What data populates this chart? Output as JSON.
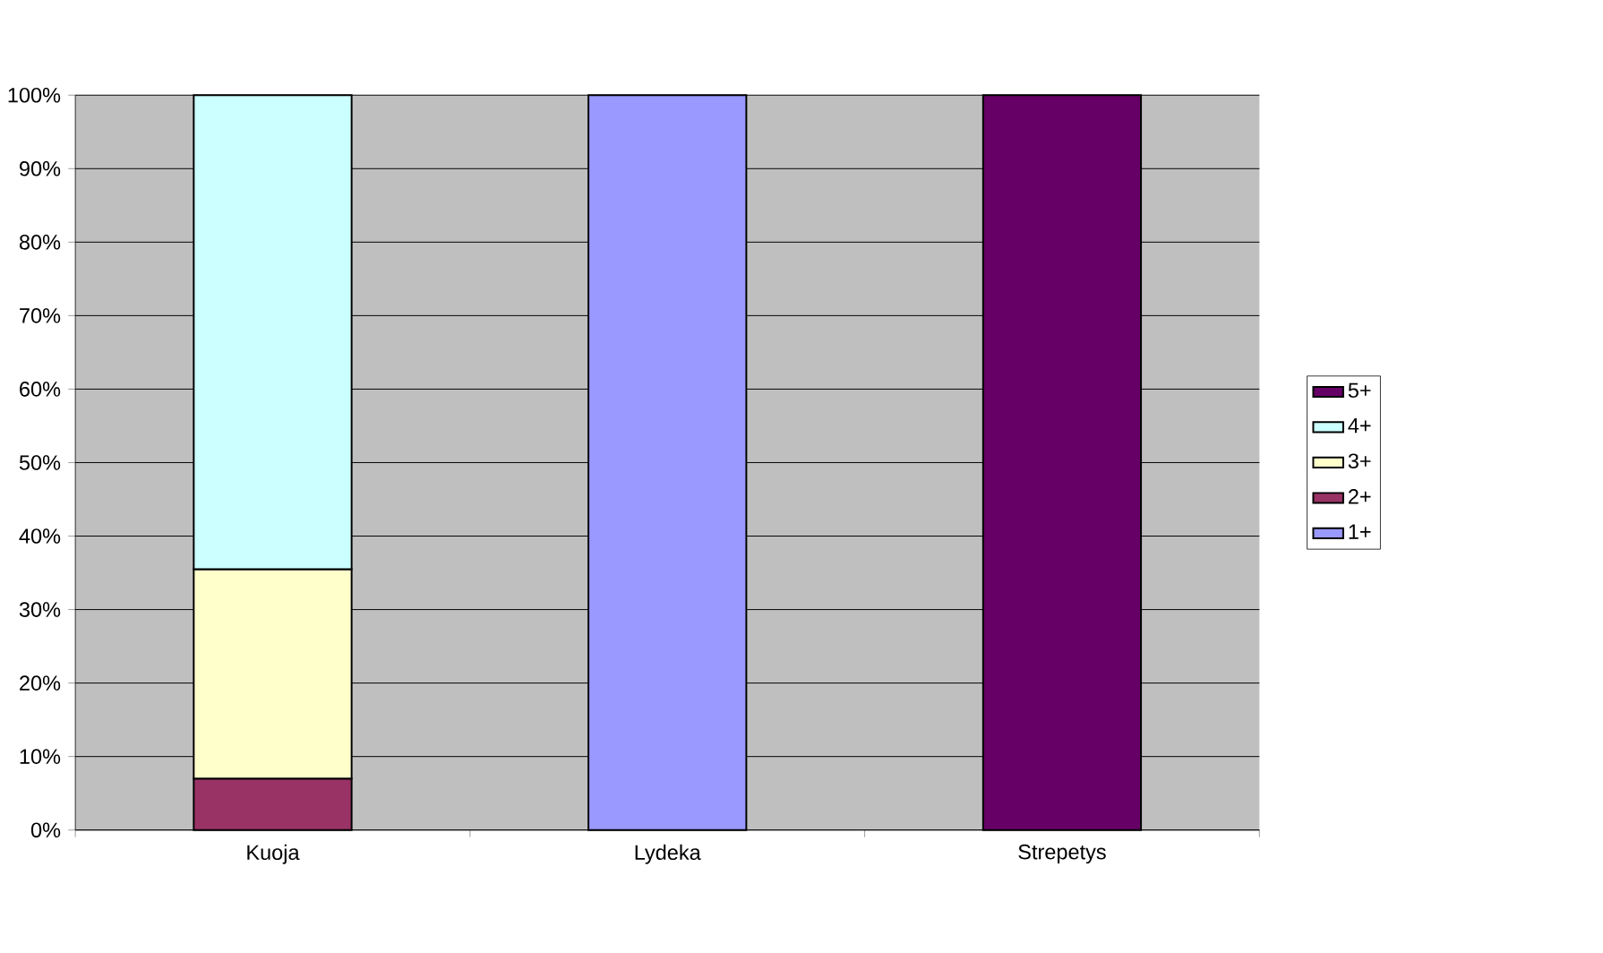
{
  "chart_data": {
    "type": "bar",
    "stacked": true,
    "categories": [
      "Kuoja",
      "Lydeka",
      "Strepetys"
    ],
    "series": [
      {
        "name": "1+",
        "color": "#9999ff",
        "values": [
          null,
          100,
          null
        ]
      },
      {
        "name": "2+",
        "color": "#993366",
        "values": [
          7,
          null,
          null
        ]
      },
      {
        "name": "3+",
        "color": "#ffffcc",
        "values": [
          28.5,
          null,
          null
        ]
      },
      {
        "name": "4+",
        "color": "#ccffff",
        "values": [
          64.5,
          null,
          null
        ]
      },
      {
        "name": "5+",
        "color": "#660066",
        "values": [
          null,
          null,
          100
        ]
      }
    ],
    "ylim": [
      0,
      100
    ],
    "yticks": [
      {
        "value": 0,
        "label": "0%"
      },
      {
        "value": 10,
        "label": "10%"
      },
      {
        "value": 20,
        "label": "20%"
      },
      {
        "value": 30,
        "label": "30%"
      },
      {
        "value": 40,
        "label": "40%"
      },
      {
        "value": 50,
        "label": "50%"
      },
      {
        "value": 60,
        "label": "60%"
      },
      {
        "value": 70,
        "label": "70%"
      },
      {
        "value": 80,
        "label": "80%"
      },
      {
        "value": 90,
        "label": "90%"
      },
      {
        "value": 100,
        "label": "100%"
      }
    ],
    "grid": "y",
    "legend": "right"
  }
}
